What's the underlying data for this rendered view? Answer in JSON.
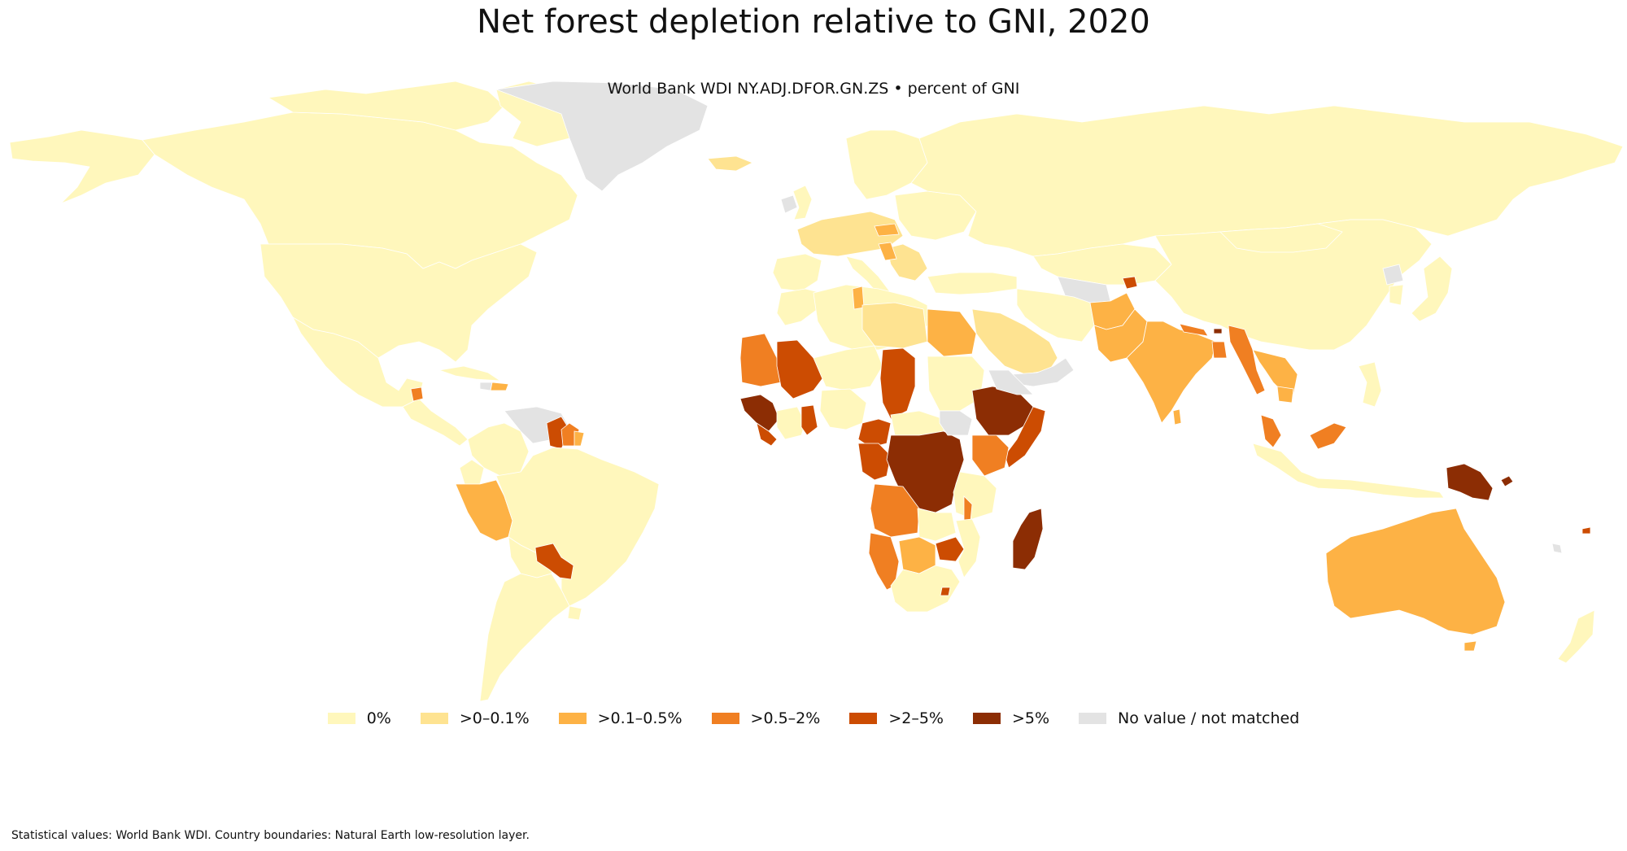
{
  "title": "Net forest depletion relative to GNI, 2020",
  "subtitle": "World Bank WDI NY.ADJ.DFOR.GN.ZS  •  percent of GNI",
  "legend": [
    {
      "label": "0%",
      "color": "#fff7bc"
    },
    {
      "label": ">0–0.1%",
      "color": "#fee391"
    },
    {
      "label": ">0.1–0.5%",
      "color": "#fdb245"
    },
    {
      "label": ">0.5–2%",
      "color": "#f07f22"
    },
    {
      "label": ">2–5%",
      "color": "#cc4c02"
    },
    {
      "label": ">5%",
      "color": "#8c2d04"
    },
    {
      "label": "No value / not matched",
      "color": "#e3e3e3"
    }
  ],
  "footer": "Statistical values: World Bank WDI. Country boundaries: Natural Earth low-resolution layer."
}
